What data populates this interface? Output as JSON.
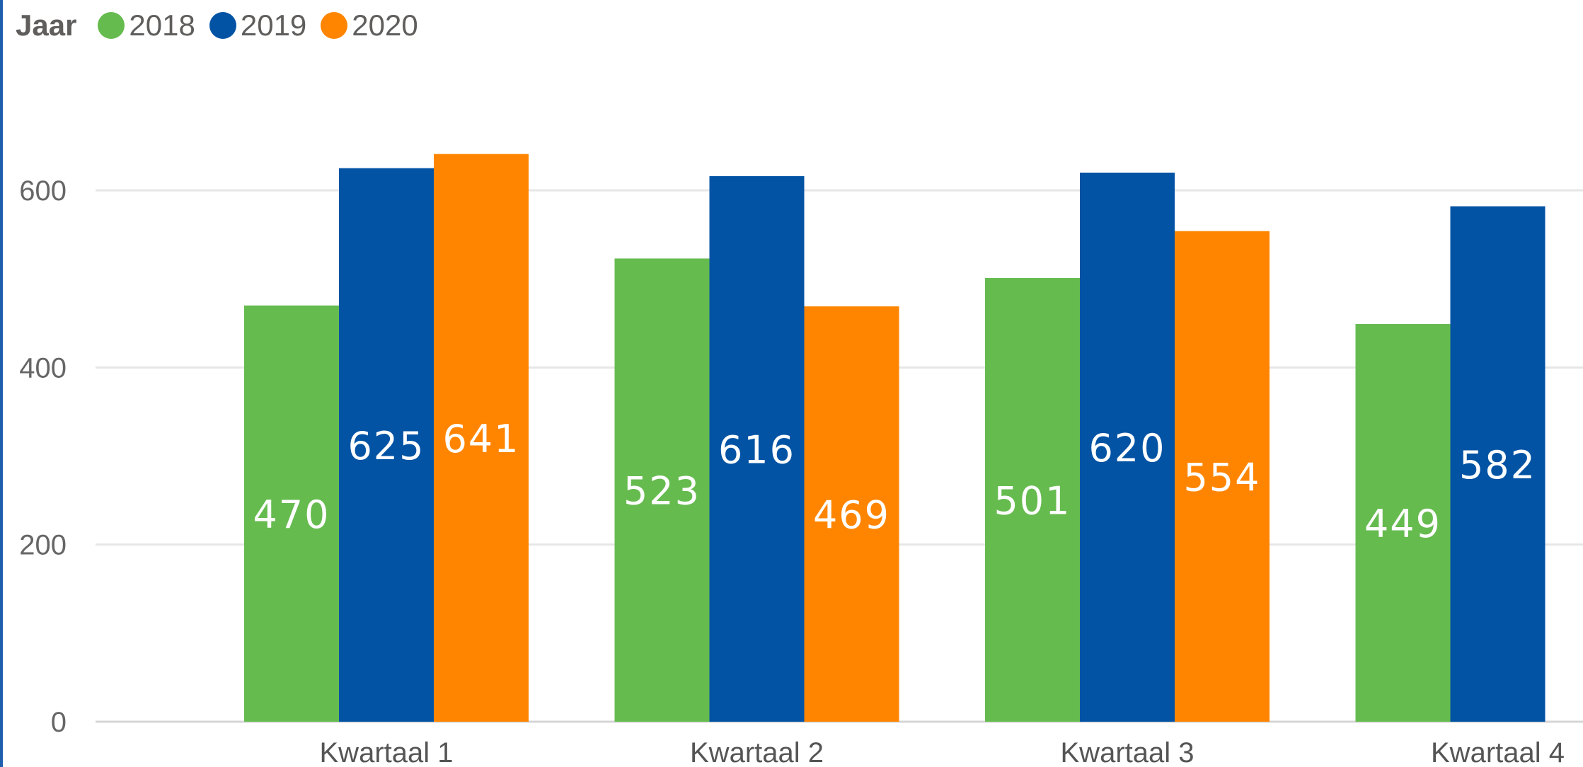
{
  "chart_data": {
    "type": "bar",
    "legend_title": "Jaar",
    "legend_placement": "top-left",
    "categories": [
      "Kwartaal 1",
      "Kwartaal 2",
      "Kwartaal 3",
      "Kwartaal 4"
    ],
    "series": [
      {
        "name": "2018",
        "color": "#66bb4f",
        "values": [
          470,
          523,
          501,
          449
        ]
      },
      {
        "name": "2019",
        "color": "#0253a4",
        "values": [
          625,
          616,
          620,
          582
        ]
      },
      {
        "name": "2020",
        "color": "#ff8500",
        "values": [
          641,
          469,
          554,
          null
        ]
      }
    ],
    "ylim": [
      0,
      700
    ],
    "yticks": [
      "0",
      "200",
      "400",
      "600"
    ],
    "grid": true,
    "data_labels": true
  }
}
